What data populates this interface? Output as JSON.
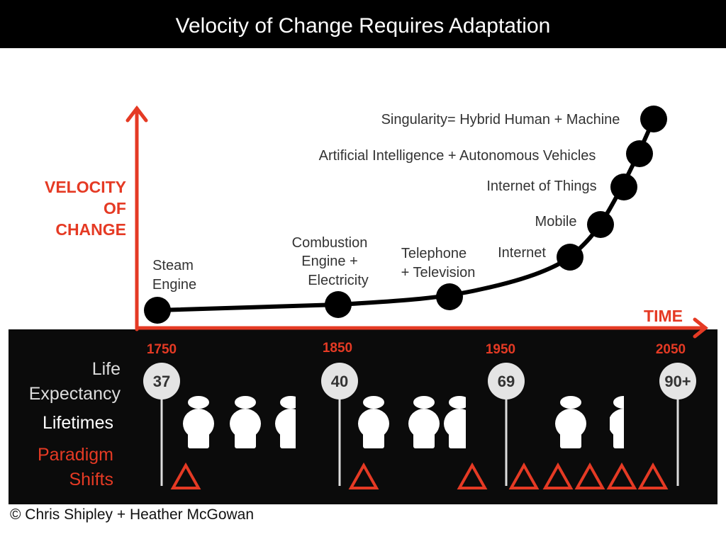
{
  "title": "Velocity of Change Requires Adaptation",
  "y_axis_label": [
    "VELOCITY",
    "OF",
    "CHANGE"
  ],
  "x_axis_label": "TIME",
  "milestones": [
    {
      "lines": [
        "Steam",
        "Engine"
      ]
    },
    {
      "lines": [
        "Combustion",
        "Engine +",
        "Electricity"
      ]
    },
    {
      "lines": [
        "Telephone",
        "+ Television"
      ]
    },
    {
      "lines": [
        "Internet"
      ]
    },
    {
      "lines": [
        "Mobile"
      ]
    },
    {
      "lines": [
        "Internet of Things"
      ]
    },
    {
      "lines": [
        "Artificial Intelligence  + Autonomous Vehicles"
      ]
    },
    {
      "lines": [
        "Singularity= Hybrid Human + Machine"
      ]
    }
  ],
  "timeline": [
    {
      "year": "1750",
      "life_expectancy": "37"
    },
    {
      "year": "1850",
      "life_expectancy": "40"
    },
    {
      "year": "1950",
      "life_expectancy": "69"
    },
    {
      "year": "2050",
      "life_expectancy": "90+"
    }
  ],
  "row_labels": {
    "life_expectancy": [
      "Life",
      "Expectancy"
    ],
    "lifetimes": "Lifetimes",
    "paradigm_shifts": [
      "Paradigm",
      "Shifts"
    ]
  },
  "paradigm_shift_count": 8,
  "copyright": "© Chris Shipley + Heather McGowan",
  "colors": {
    "accent": "#e53a24",
    "panel": "#0b0b0b",
    "title_bar": "#000000"
  }
}
